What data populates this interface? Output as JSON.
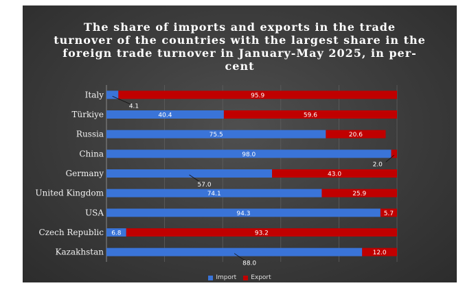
{
  "chart_data": {
    "type": "bar",
    "orientation": "horizontal",
    "stacked": true,
    "title": "The share of imports and exports in the trade turnover of the countries with the largest share in the foreign trade turnover in January-May 2025, in per-cent",
    "title_lines": [
      "The share of imports and exports in the trade",
      "turnover of the countries with the largest share in the",
      "foreign trade turnover in January-May 2025, in per-",
      "cent"
    ],
    "xlim": [
      0,
      100
    ],
    "grid": true,
    "legend_position": "bottom",
    "categories": [
      "Italy",
      "Türkiye",
      "Russia",
      "China",
      "Germany",
      "United Kingdom",
      "USA",
      "Czech Republic",
      "Kazakhstan"
    ],
    "series": [
      {
        "name": "Import",
        "color": "#3a74d8",
        "values": [
          4.1,
          40.4,
          75.5,
          98.0,
          57.0,
          74.1,
          94.3,
          6.8,
          88.0
        ]
      },
      {
        "name": "Export",
        "color": "#c00000",
        "values": [
          95.9,
          59.6,
          20.6,
          2.0,
          43.0,
          25.9,
          5.7,
          93.2,
          12.0
        ]
      }
    ],
    "value_labels": [
      {
        "import": "4.1",
        "export": "95.9"
      },
      {
        "import": "40.4",
        "export": "59.6"
      },
      {
        "import": "75.5",
        "export": "20.6"
      },
      {
        "import": "98.0",
        "export": "2.0"
      },
      {
        "import": "57.0",
        "export": "43.0"
      },
      {
        "import": "74.1",
        "export": "25.9"
      },
      {
        "import": "94.3",
        "export": "5.7"
      },
      {
        "import": "6.8",
        "export": "93.2"
      },
      {
        "import": "88.0",
        "export": "12.0"
      }
    ]
  }
}
